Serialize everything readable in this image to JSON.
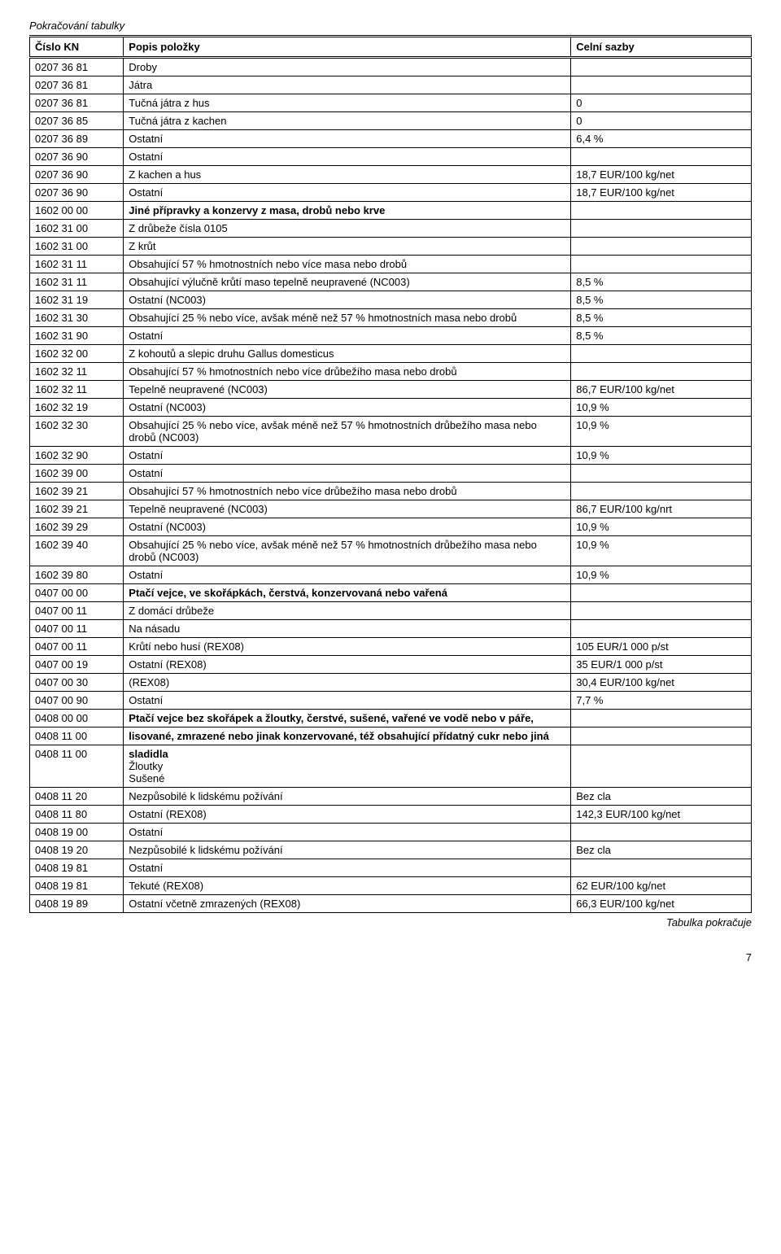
{
  "continuation_label": "Pokračování tabulky",
  "headers": {
    "col1": "Číslo KN",
    "col2": "Popis položky",
    "col3": "Celní sazby"
  },
  "rows": [
    {
      "c1": "0207 36 81",
      "c2": "Droby",
      "c3": ""
    },
    {
      "c1": "0207 36 81",
      "c2": "Játra",
      "c3": ""
    },
    {
      "c1": "0207 36 81",
      "c2": "Tučná játra z hus",
      "c3": "0"
    },
    {
      "c1": "0207 36 85",
      "c2": "Tučná játra z kachen",
      "c3": "0"
    },
    {
      "c1": "0207 36 89",
      "c2": "Ostatní",
      "c3": "6,4 %"
    },
    {
      "c1": "0207 36 90",
      "c2": "Ostatní",
      "c3": ""
    },
    {
      "c1": "0207 36 90",
      "c2": "Z kachen a hus",
      "c3": "18,7 EUR/100 kg/net"
    },
    {
      "c1": "0207 36 90",
      "c2": "Ostatní",
      "c3": "18,7 EUR/100 kg/net"
    },
    {
      "c1": "1602 00 00",
      "c2": "Jiné přípravky a konzervy z masa, drobů nebo krve",
      "c3": "",
      "bold": true
    },
    {
      "c1": "1602 31 00",
      "c2": "Z drůbeže čísla 0105",
      "c3": ""
    },
    {
      "c1": "1602 31 00",
      "c2": "Z krůt",
      "c3": ""
    },
    {
      "c1": "1602 31 11",
      "c2": "Obsahující 57 % hmotnostních nebo více masa nebo drobů",
      "c3": ""
    },
    {
      "c1": "1602 31 11",
      "c2": "Obsahující výlučně krůtí maso tepelně neupravené (NC003)",
      "c3": "8,5 %"
    },
    {
      "c1": "1602 31 19",
      "c2": "Ostatní (NC003)",
      "c3": "8,5 %"
    },
    {
      "c1": "1602 31 30",
      "c2": "Obsahující 25 % nebo více, avšak méně než 57 % hmotnostních masa nebo drobů",
      "c3": "8,5 %"
    },
    {
      "c1": "1602 31 90",
      "c2": "Ostatní",
      "c3": "8,5 %"
    },
    {
      "c1": "1602 32 00",
      "c2": "Z kohoutů a slepic druhu Gallus domesticus",
      "c3": ""
    },
    {
      "c1": "1602 32 11",
      "c2": "Obsahující 57 % hmotnostních nebo více drůbežího masa nebo drobů",
      "c3": ""
    },
    {
      "c1": "1602 32 11",
      "c2": "Tepelně neupravené (NC003)",
      "c3": "86,7 EUR/100 kg/net"
    },
    {
      "c1": "1602 32 19",
      "c2": "Ostatní (NC003)",
      "c3": "10,9 %"
    },
    {
      "c1": "1602 32 30",
      "c2": "Obsahující 25 % nebo více, avšak méně než 57 % hmotnostních drůbežího masa nebo drobů (NC003)",
      "c3": "10,9 %"
    },
    {
      "c1": "1602 32 90",
      "c2": "Ostatní",
      "c3": "10,9 %"
    },
    {
      "c1": "1602 39 00",
      "c2": "Ostatní",
      "c3": ""
    },
    {
      "c1": "1602 39 21",
      "c2": "Obsahující 57 % hmotnostních nebo více drůbežího masa nebo drobů",
      "c3": ""
    },
    {
      "c1": "1602 39 21",
      "c2": "Tepelně neupravené (NC003)",
      "c3": "86,7 EUR/100 kg/nrt"
    },
    {
      "c1": "1602 39 29",
      "c2": "Ostatní (NC003)",
      "c3": "10,9 %"
    },
    {
      "c1": "1602 39 40",
      "c2": "Obsahující 25 % nebo více, avšak méně než 57 % hmotnostních drůbežího masa nebo drobů (NC003)",
      "c3": "10,9 %"
    },
    {
      "c1": "1602 39 80",
      "c2": "Ostatní",
      "c3": "10,9 %"
    },
    {
      "c1": "0407 00 00",
      "c2": "Ptačí vejce, ve skořápkách, čerstvá, konzervovaná nebo vařená",
      "c3": "",
      "bold": true
    },
    {
      "c1": "0407 00 11",
      "c2": "Z domácí drůbeže",
      "c3": ""
    },
    {
      "c1": "0407 00 11",
      "c2": "Na násadu",
      "c3": ""
    },
    {
      "c1": "0407 00 11",
      "c2": "Krůtí nebo husí (REX08)",
      "c3": "105 EUR/1 000 p/st"
    },
    {
      "c1": "0407 00 19",
      "c2": "Ostatní  (REX08)",
      "c3": "35 EUR/1 000 p/st"
    },
    {
      "c1": "0407 00 30",
      "c2": "(REX08)",
      "c3": "30,4 EUR/100 kg/net"
    },
    {
      "c1": "0407 00 90",
      "c2": "Ostatní",
      "c3": "7,7 %"
    },
    {
      "c1": "0408 00 00",
      "c2": "Ptačí vejce bez skořápek a žloutky, čerstvé, sušené, vařené ve vodě nebo v páře,",
      "c3": "",
      "bold": true
    },
    {
      "c1": "0408 11 00",
      "c2": "lisované, zmrazené nebo jinak konzervované, též obsahující přídatný cukr nebo jiná",
      "c3": "",
      "bold": true
    },
    {
      "c1": "0408 11 00",
      "c2": "sladidla\nŽloutky\nSušené",
      "c3": "",
      "boldFirstLine": true
    },
    {
      "c1": "0408 11 20",
      "c2": "Nezpůsobilé k lidskému požívání",
      "c3": "Bez cla"
    },
    {
      "c1": "0408 11 80",
      "c2": "Ostatní (REX08)",
      "c3": "142,3 EUR/100 kg/net"
    },
    {
      "c1": "0408 19 00",
      "c2": "Ostatní",
      "c3": ""
    },
    {
      "c1": "0408 19 20",
      "c2": "Nezpůsobilé k lidskému požívání",
      "c3": "Bez cla"
    },
    {
      "c1": "0408 19 81",
      "c2": "Ostatní",
      "c3": ""
    },
    {
      "c1": "0408 19 81",
      "c2": "Tekuté (REX08)",
      "c3": "62 EUR/100 kg/net"
    },
    {
      "c1": "0408 19 89",
      "c2": "Ostatní včetně zmrazených (REX08)",
      "c3": "66,3 EUR/100 kg/net"
    }
  ],
  "footnote": "Tabulka pokračuje",
  "page_number": "7"
}
